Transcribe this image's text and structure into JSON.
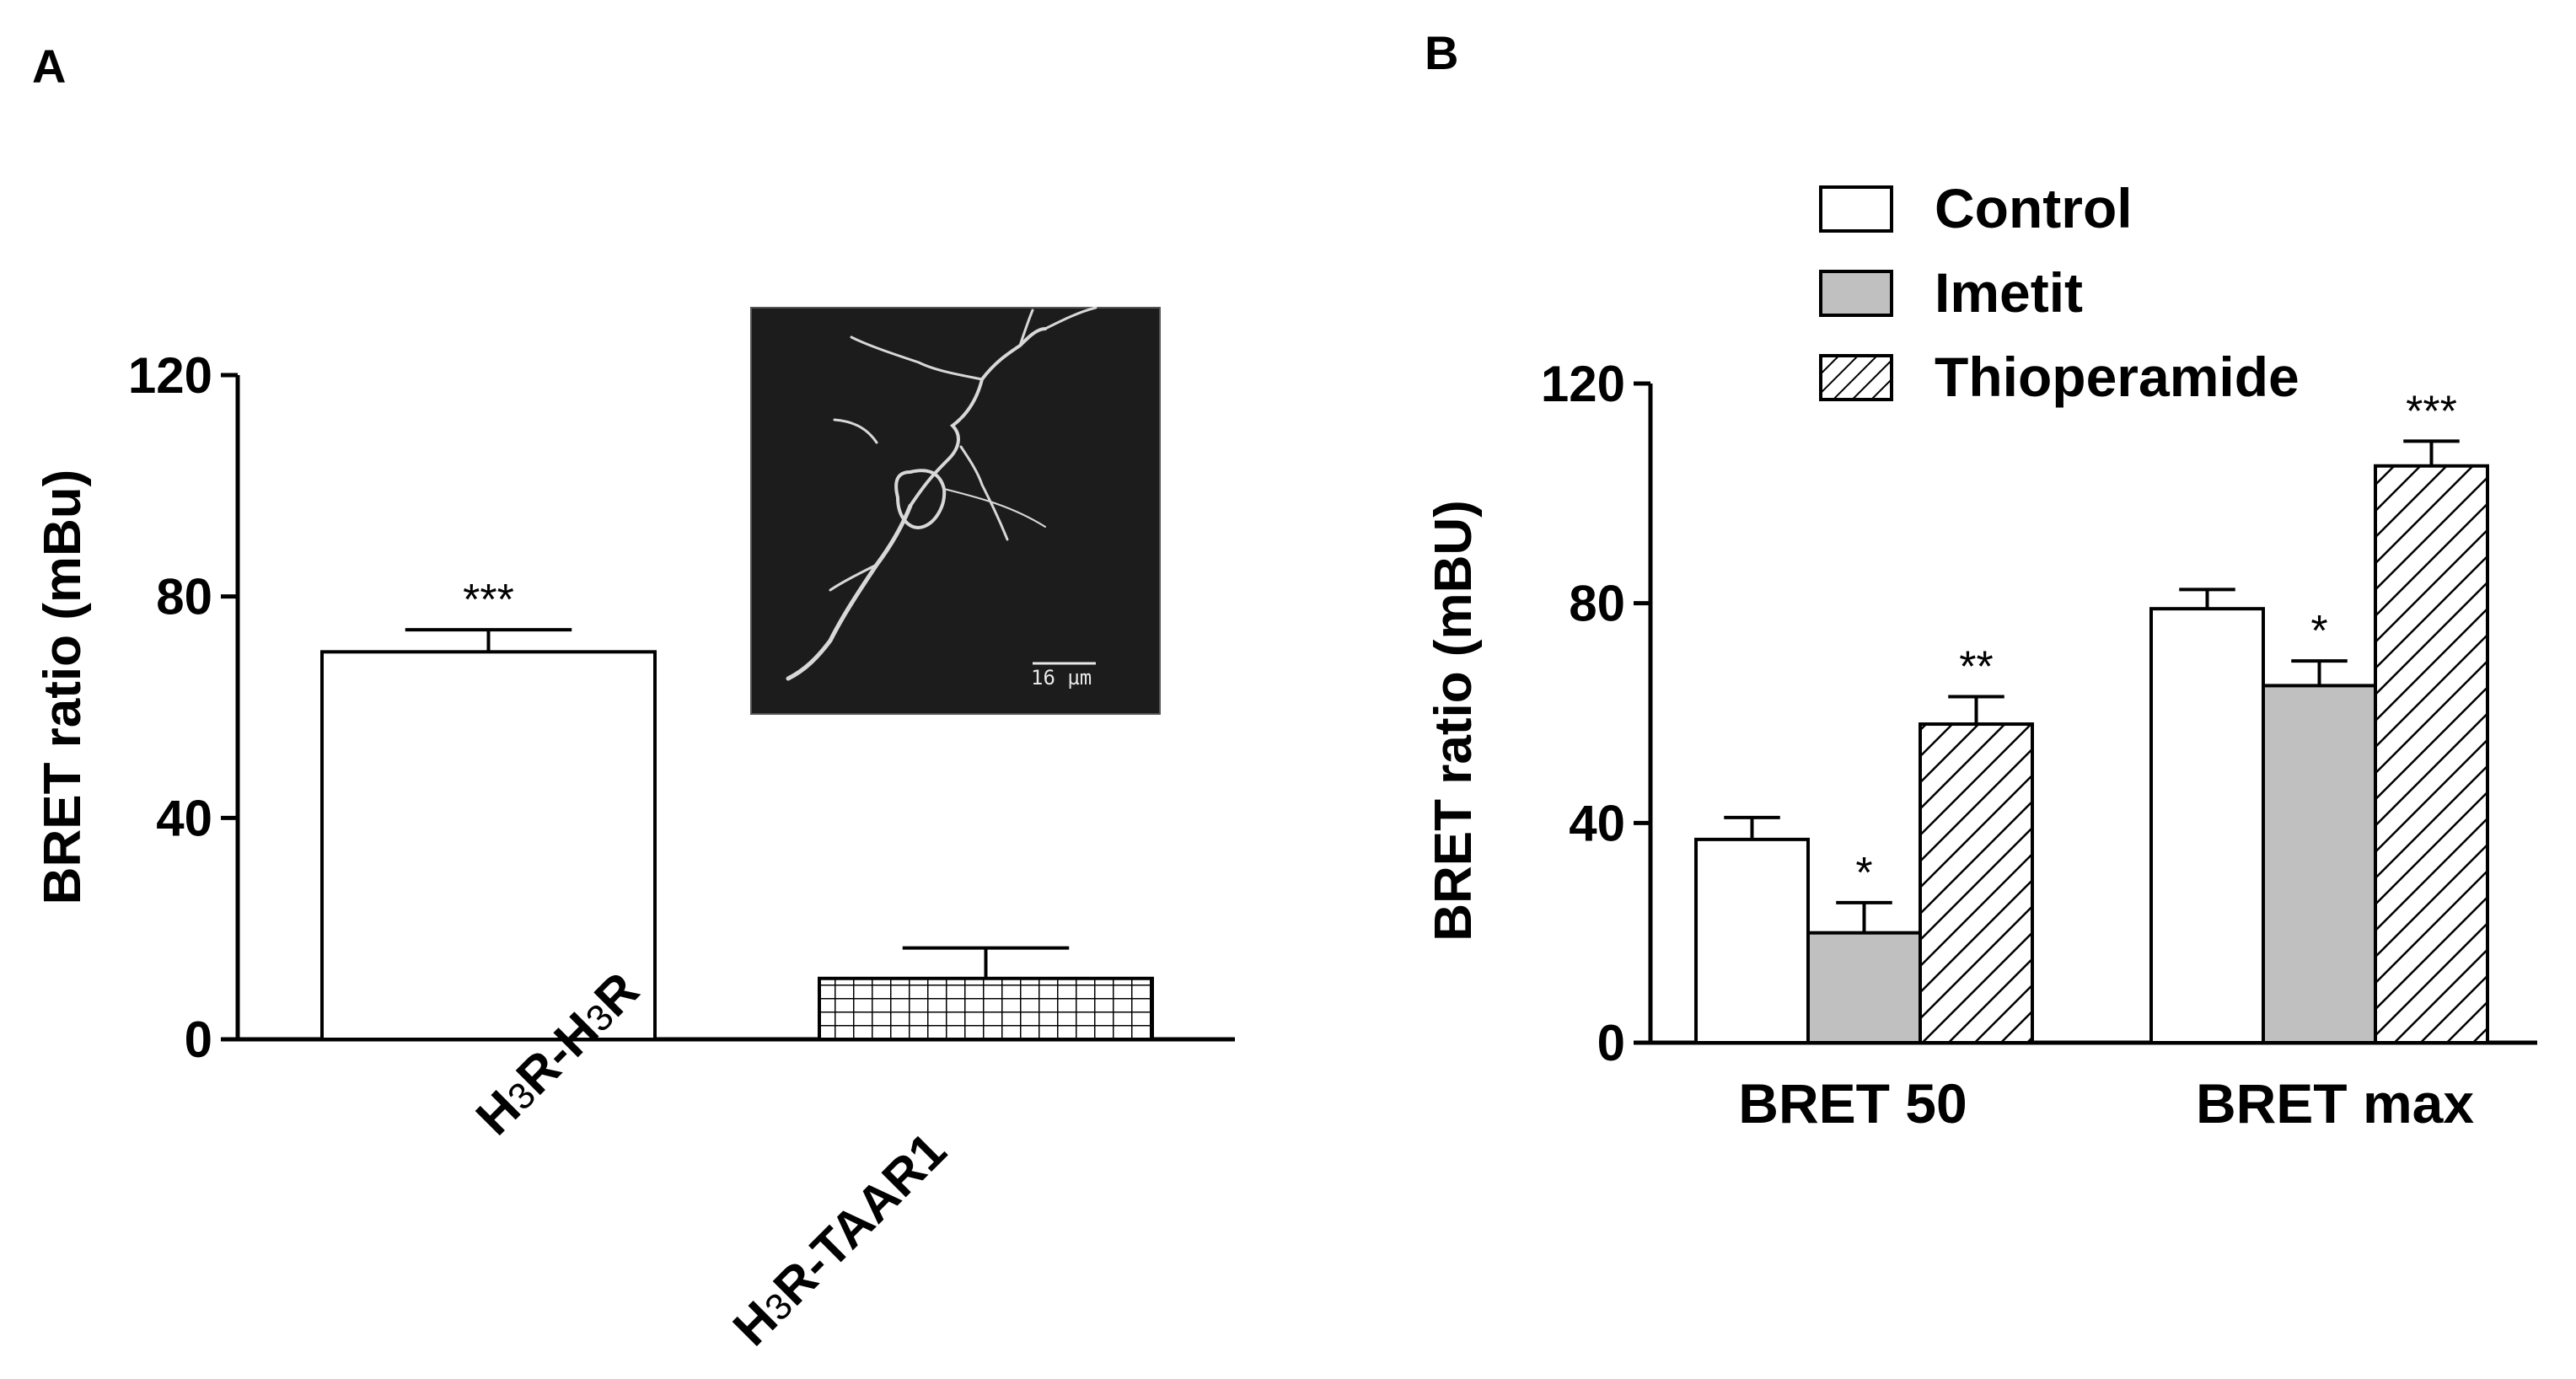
{
  "colors": {
    "control": "#ffffff",
    "imetit": "#c0c0c0",
    "thioperamide_hatch": "#000000",
    "taar1_grid": "#000000",
    "micrograph_bg": "#1c1c1c"
  },
  "chart_data": [
    {
      "panel": "A",
      "type": "bar",
      "ylabel": "BRET ratio (mBu)",
      "ylim": [
        0,
        120
      ],
      "yticks": [
        "0",
        "40",
        "80",
        "120"
      ],
      "categories": [
        {
          "prefix": "H",
          "sub": "3",
          "suffix": "R-H",
          "sub2": "3",
          "suffix2": "R"
        },
        {
          "prefix": "H",
          "sub": "3",
          "suffix": "R-TAAR1",
          "sub2": "",
          "suffix2": ""
        }
      ],
      "values": [
        70,
        11
      ],
      "errors": [
        4,
        5.5
      ],
      "fills": [
        "plain",
        "grid"
      ],
      "significance": [
        "***",
        ""
      ],
      "inset": {
        "description_icon": "neuron-micrograph",
        "scale_bar_label": "16 µm"
      }
    },
    {
      "panel": "B",
      "type": "bar",
      "ylabel": "BRET ratio (mBU)",
      "ylim": [
        0,
        120
      ],
      "yticks": [
        "0",
        "40",
        "80",
        "120"
      ],
      "categories": [
        "BRET 50",
        "BRET max"
      ],
      "series": [
        {
          "name": "Control",
          "fill": "plain",
          "values": [
            37,
            79
          ],
          "errors": [
            4,
            3.5
          ],
          "significance": [
            "",
            ""
          ]
        },
        {
          "name": "Imetit",
          "fill": "grey",
          "values": [
            20,
            65
          ],
          "errors": [
            5.5,
            4.5
          ],
          "significance": [
            "*",
            "*"
          ]
        },
        {
          "name": "Thioperamide",
          "fill": "hatch",
          "values": [
            58,
            105
          ],
          "errors": [
            5,
            4.5
          ],
          "significance": [
            "**",
            "***"
          ]
        }
      ],
      "legend_position": "top-right"
    }
  ]
}
